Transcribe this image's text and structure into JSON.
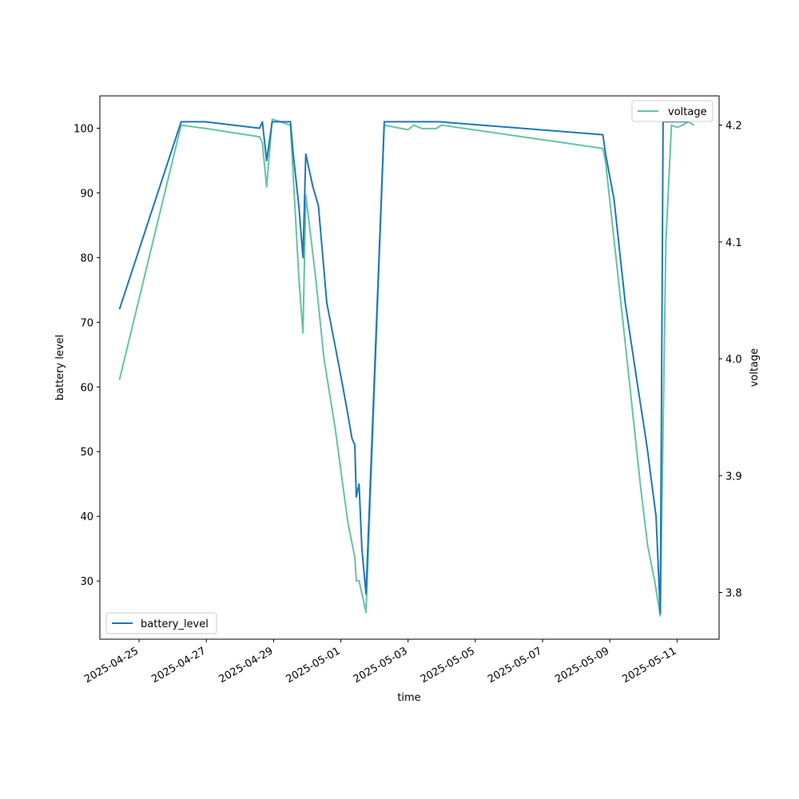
{
  "chart_data": {
    "type": "line",
    "xlabel": "time",
    "ylabel_left": "battery level",
    "ylabel_right": "voltage",
    "xlim": [
      "2025-04-23T20:00",
      "2025-05-12T06:00"
    ],
    "ylim_left": [
      21,
      105
    ],
    "ylim_right": [
      3.76,
      4.225
    ],
    "x_ticks": [
      "2025-04-25",
      "2025-04-27",
      "2025-04-29",
      "2025-05-01",
      "2025-05-03",
      "2025-05-05",
      "2025-05-07",
      "2025-05-09",
      "2025-05-11"
    ],
    "y_ticks_left": [
      30,
      40,
      50,
      60,
      70,
      80,
      90,
      100
    ],
    "y_ticks_right": [
      3.8,
      3.9,
      4.0,
      4.1,
      4.2
    ],
    "legend_left": {
      "label": "battery_level",
      "placement": "lower-left"
    },
    "legend_right": {
      "label": "voltage",
      "placement": "upper-right"
    },
    "series": [
      {
        "name": "battery_level",
        "axis": "left",
        "color": "#1f77b4",
        "points": [
          [
            "2025-04-24T10:00",
            72
          ],
          [
            "2025-04-26T06:00",
            101
          ],
          [
            "2025-04-26T23:00",
            101
          ],
          [
            "2025-04-28T14:00",
            100
          ],
          [
            "2025-04-28T16:00",
            101
          ],
          [
            "2025-04-28T19:00",
            95
          ],
          [
            "2025-04-28T23:00",
            101
          ],
          [
            "2025-04-29T12:00",
            101
          ],
          [
            "2025-04-29T14:00",
            96
          ],
          [
            "2025-04-29T18:00",
            88
          ],
          [
            "2025-04-29T21:00",
            80
          ],
          [
            "2025-04-29T23:00",
            96
          ],
          [
            "2025-04-30T04:00",
            91
          ],
          [
            "2025-04-30T08:00",
            88
          ],
          [
            "2025-04-30T14:00",
            73
          ],
          [
            "2025-04-30T22:00",
            64
          ],
          [
            "2025-05-01T04:00",
            57
          ],
          [
            "2025-05-01T08:00",
            52
          ],
          [
            "2025-05-01T10:00",
            51
          ],
          [
            "2025-05-01T11:00",
            43
          ],
          [
            "2025-05-01T13:00",
            45
          ],
          [
            "2025-05-01T15:00",
            35
          ],
          [
            "2025-05-01T18:00",
            28
          ],
          [
            "2025-05-02T07:00",
            101
          ],
          [
            "2025-05-03T22:00",
            101
          ],
          [
            "2025-05-08T19:00",
            99
          ],
          [
            "2025-05-08T21:00",
            96
          ],
          [
            "2025-05-09T03:00",
            89
          ],
          [
            "2025-05-09T11:00",
            73
          ],
          [
            "2025-05-09T20:00",
            60
          ],
          [
            "2025-05-10T01:00",
            53
          ],
          [
            "2025-05-10T03:00",
            50
          ],
          [
            "2025-05-10T06:00",
            45
          ],
          [
            "2025-05-10T09:00",
            40
          ],
          [
            "2025-05-10T12:00",
            25
          ],
          [
            "2025-05-10T14:00",
            101
          ],
          [
            "2025-05-11T08:00",
            101
          ]
        ]
      },
      {
        "name": "voltage",
        "axis": "right",
        "color": "#66c2a5",
        "points": [
          [
            "2025-04-24T10:00",
            3.982
          ],
          [
            "2025-04-26T06:00",
            4.2
          ],
          [
            "2025-04-27T00:00",
            4.197
          ],
          [
            "2025-04-28T14:00",
            4.19
          ],
          [
            "2025-04-28T16:00",
            4.185
          ],
          [
            "2025-04-28T19:00",
            4.147
          ],
          [
            "2025-04-28T23:00",
            4.205
          ],
          [
            "2025-04-29T12:00",
            4.2
          ],
          [
            "2025-04-29T18:00",
            4.07
          ],
          [
            "2025-04-29T21:00",
            4.022
          ],
          [
            "2025-04-29T23:00",
            4.14
          ],
          [
            "2025-04-30T06:00",
            4.07
          ],
          [
            "2025-04-30T12:00",
            4.0
          ],
          [
            "2025-04-30T20:00",
            3.94
          ],
          [
            "2025-05-01T05:00",
            3.86
          ],
          [
            "2025-05-01T10:00",
            3.83
          ],
          [
            "2025-05-01T11:00",
            3.81
          ],
          [
            "2025-05-01T13:00",
            3.81
          ],
          [
            "2025-05-01T18:00",
            3.783
          ],
          [
            "2025-05-02T07:00",
            4.2
          ],
          [
            "2025-05-03T00:00",
            4.196
          ],
          [
            "2025-05-03T04:00",
            4.2
          ],
          [
            "2025-05-03T10:00",
            4.197
          ],
          [
            "2025-05-03T20:00",
            4.197
          ],
          [
            "2025-05-04T00:00",
            4.2
          ],
          [
            "2025-05-08T19:00",
            4.18
          ],
          [
            "2025-05-08T21:00",
            4.168
          ],
          [
            "2025-05-09T05:00",
            4.08
          ],
          [
            "2025-05-09T14:00",
            3.98
          ],
          [
            "2025-05-09T22:00",
            3.89
          ],
          [
            "2025-05-10T03:00",
            3.84
          ],
          [
            "2025-05-10T08:00",
            3.81
          ],
          [
            "2025-05-10T12:00",
            3.78
          ],
          [
            "2025-05-10T16:00",
            4.1
          ],
          [
            "2025-05-10T20:00",
            4.2
          ],
          [
            "2025-05-11T00:00",
            4.198
          ],
          [
            "2025-05-11T04:00",
            4.2
          ],
          [
            "2025-05-11T08:00",
            4.203
          ],
          [
            "2025-05-11T12:00",
            4.2
          ]
        ]
      }
    ]
  }
}
